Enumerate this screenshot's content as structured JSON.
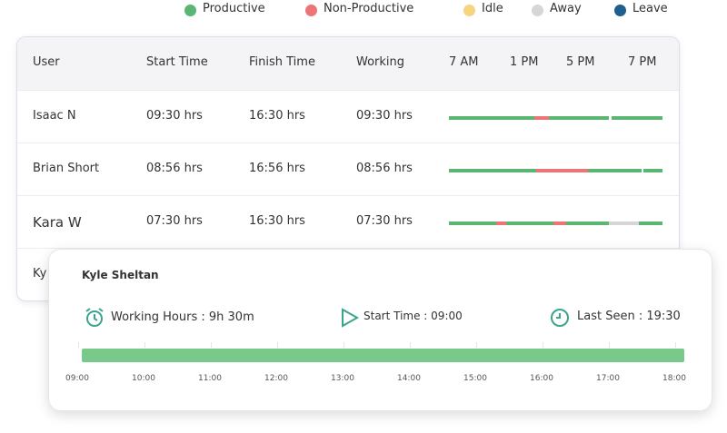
{
  "legend": [
    {
      "label": "Productive",
      "color": "#5cb673"
    },
    {
      "label": "Non-Productive",
      "color": "#ec7577"
    },
    {
      "label": "Idle",
      "color": "#f5d67e"
    },
    {
      "label": "Away",
      "color": "#d6d6d6"
    },
    {
      "label": "Leave",
      "color": "#1f5f8b"
    }
  ],
  "table": {
    "headers": [
      "User",
      "Start Time",
      "Finish Time",
      "Working",
      "7 AM",
      "1 PM",
      "5 PM",
      "7 PM"
    ],
    "rows": [
      [
        "Isaac N",
        "09:30 hrs",
        "16:30 hrs",
        "09:30 hrs"
      ],
      [
        "Brian Short",
        "08:56 hrs",
        "16:56 hrs",
        "08:56 hrs"
      ],
      [
        "Kara W",
        "07:30 hrs",
        "16:30 hrs",
        "07:30 hrs"
      ],
      [
        "Ky"
      ]
    ]
  },
  "card": {
    "name": "Kyle Sheltan",
    "working_hours": "Working Hours : 9h 30m",
    "start_time": "Start Time : 09:00",
    "last_seen": "Last Seen : 19:30",
    "axis": [
      "09:00",
      "10:00",
      "11:00",
      "12:00",
      "13:00",
      "14:00",
      "15:00",
      "16:00",
      "17:00",
      "18:00"
    ]
  }
}
